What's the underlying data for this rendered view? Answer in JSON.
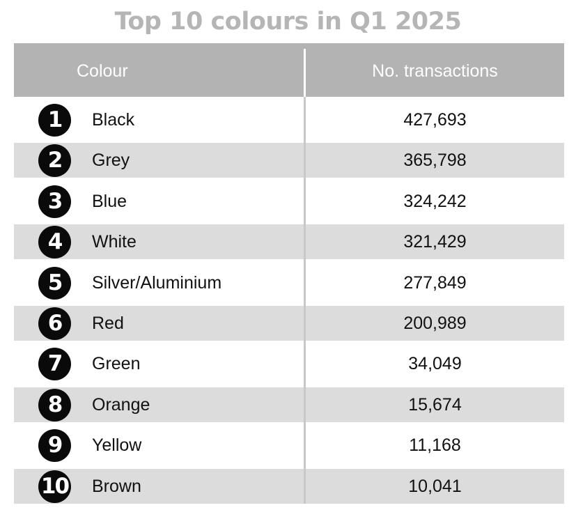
{
  "title": "Top 10 colours in Q1 2025",
  "chart_data": {
    "type": "table",
    "title": "Top 10 colours in Q1 2025",
    "columns": [
      "Colour",
      "No. transactions"
    ],
    "rows": [
      {
        "rank": "1",
        "colour": "Black",
        "transactions": "427,693"
      },
      {
        "rank": "2",
        "colour": "Grey",
        "transactions": "365,798"
      },
      {
        "rank": "3",
        "colour": "Blue",
        "transactions": "324,242"
      },
      {
        "rank": "4",
        "colour": "White",
        "transactions": "321,429"
      },
      {
        "rank": "5",
        "colour": "Silver/Aluminium",
        "transactions": "277,849"
      },
      {
        "rank": "6",
        "colour": "Red",
        "transactions": "200,989"
      },
      {
        "rank": "7",
        "colour": "Green",
        "transactions": "34,049"
      },
      {
        "rank": "8",
        "colour": "Orange",
        "transactions": "15,674"
      },
      {
        "rank": "9",
        "colour": "Yellow",
        "transactions": "11,168"
      },
      {
        "rank": "10",
        "colour": "Brown",
        "transactions": "10,041"
      }
    ],
    "colors": {
      "header_background": "#b3b3b3",
      "alternate_row": "#dcdcdc",
      "badge": "#0a0a0a",
      "title": "#b5b5b5"
    }
  }
}
